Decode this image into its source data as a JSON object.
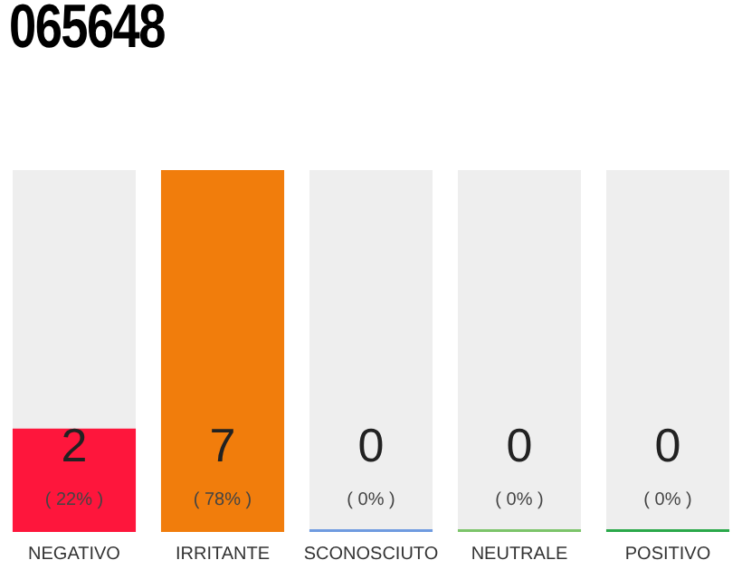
{
  "chart_data": {
    "type": "bar",
    "title": "065648",
    "categories": [
      "NEGATIVO",
      "IRRITANTE",
      "SCONOSCIUTO",
      "NEUTRALE",
      "POSITIVO"
    ],
    "values": [
      2,
      7,
      0,
      0,
      0
    ],
    "colors": [
      "#fe163c",
      "#f17d0c",
      "#6f9be0",
      "#7cc46a",
      "#2aa84a"
    ],
    "value_labels": [
      "2 ( 22% )",
      "7 ( 78% )",
      "0 ( 0% )",
      "0 ( 0% )",
      "0 ( 0% )"
    ],
    "grid": false,
    "legend": false
  }
}
